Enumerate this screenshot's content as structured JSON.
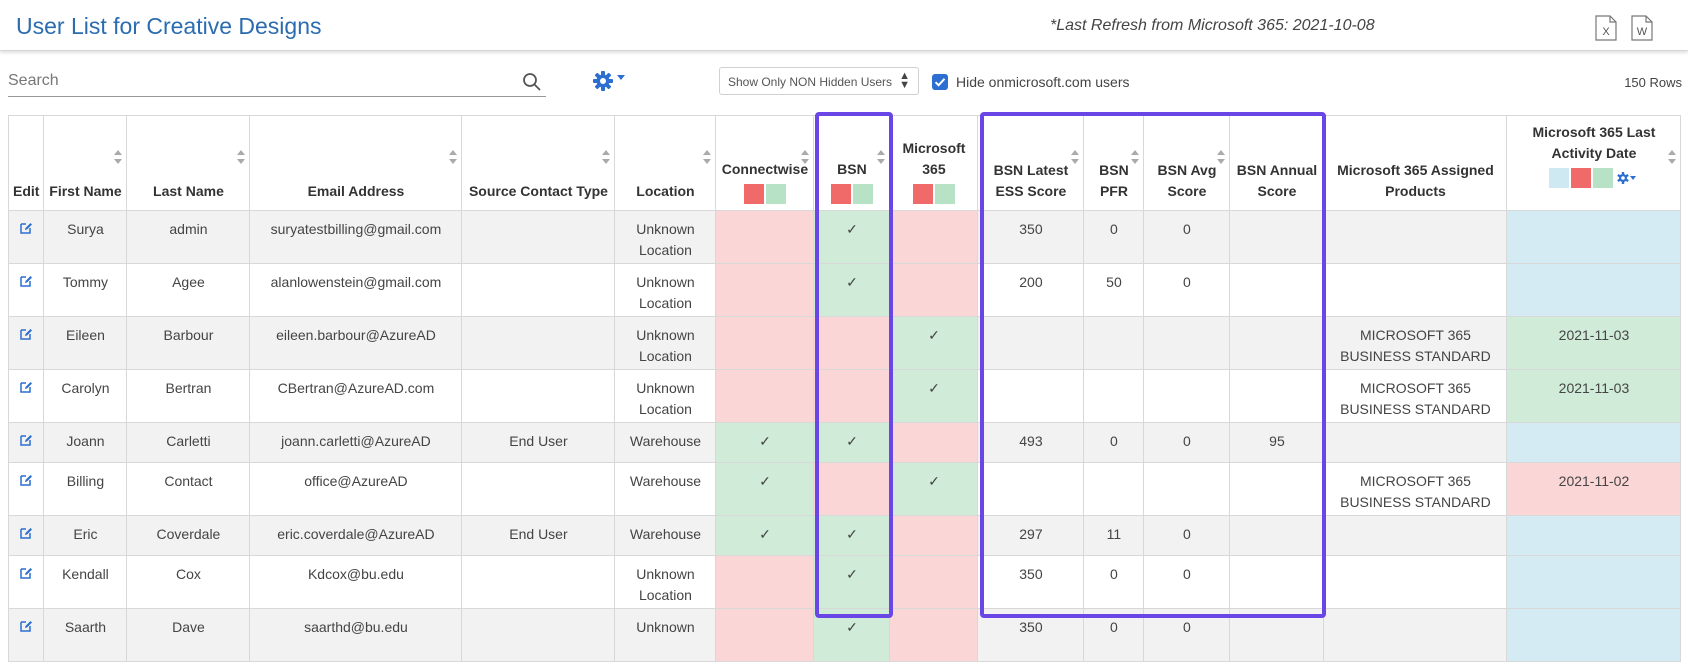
{
  "header": {
    "title": "User List for Creative Designs",
    "refresh_note": "*Last Refresh from Microsoft 365: 2021-10-08",
    "export_excel_letter": "X",
    "export_word_letter": "W"
  },
  "toolbar": {
    "search_placeholder": "Search",
    "filter_value": "Show Only NON Hidden Users",
    "hide_onmicrosoft_label": "Hide onmicrosoft.com users",
    "hide_onmicrosoft_checked": true,
    "row_count": "150 Rows"
  },
  "colors": {
    "accent": "#2b6cb0",
    "highlight_border": "#6a46e6",
    "status_red": "#fbd6d6",
    "status_green": "#d0ecd8",
    "status_blue": "#d4ebf4"
  },
  "columns": [
    {
      "key": "edit",
      "label": "Edit"
    },
    {
      "key": "first",
      "label": "First Name"
    },
    {
      "key": "last",
      "label": "Last Name"
    },
    {
      "key": "email",
      "label": "Email Address"
    },
    {
      "key": "source",
      "label": "Source Contact Type"
    },
    {
      "key": "location",
      "label": "Location"
    },
    {
      "key": "connectwise",
      "label": "Connectwise"
    },
    {
      "key": "bsn",
      "label": "BSN"
    },
    {
      "key": "m365",
      "label": "Microsoft 365"
    },
    {
      "key": "ess",
      "label": "BSN Latest ESS Score"
    },
    {
      "key": "pfr",
      "label": "BSN PFR"
    },
    {
      "key": "avg",
      "label": "BSN Avg Score"
    },
    {
      "key": "annual",
      "label": "BSN Annual Score"
    },
    {
      "key": "products",
      "label": "Microsoft 365 Assigned Products"
    },
    {
      "key": "activity",
      "label": "Microsoft 365 Last Activity Date"
    }
  ],
  "rows": [
    {
      "first": "Surya",
      "last": "admin",
      "email": "suryatestbilling@gmail.com",
      "source": "",
      "location": "Unknown Location",
      "connectwise": "",
      "bsn": "✓",
      "m365": "",
      "ess": "350",
      "pfr": "0",
      "avg": "0",
      "annual": "",
      "products": "",
      "activity": ""
    },
    {
      "first": "Tommy",
      "last": "Agee",
      "email": "alanlowenstein@gmail.com",
      "source": "",
      "location": "Unknown Location",
      "connectwise": "",
      "bsn": "✓",
      "m365": "",
      "ess": "200",
      "pfr": "50",
      "avg": "0",
      "annual": "",
      "products": "",
      "activity": ""
    },
    {
      "first": "Eileen",
      "last": "Barbour",
      "email": "eileen.barbour@AzureAD",
      "source": "",
      "location": "Unknown Location",
      "connectwise": "",
      "bsn": "",
      "m365": "✓",
      "ess": "",
      "pfr": "",
      "avg": "",
      "annual": "",
      "products": "MICROSOFT 365 BUSINESS STANDARD",
      "activity": "2021-11-03"
    },
    {
      "first": "Carolyn",
      "last": "Bertran",
      "email": "CBertran@AzureAD.com",
      "source": "",
      "location": "Unknown Location",
      "connectwise": "",
      "bsn": "",
      "m365": "✓",
      "ess": "",
      "pfr": "",
      "avg": "",
      "annual": "",
      "products": "MICROSOFT 365 BUSINESS STANDARD",
      "activity": "2021-11-03"
    },
    {
      "first": "Joann",
      "last": "Carletti",
      "email": "joann.carletti@AzureAD",
      "source": "End User",
      "location": "Warehouse",
      "connectwise": "✓",
      "bsn": "✓",
      "m365": "",
      "ess": "493",
      "pfr": "0",
      "avg": "0",
      "annual": "95",
      "products": "",
      "activity": ""
    },
    {
      "first": "Billing",
      "last": "Contact",
      "email": "office@AzureAD",
      "source": "",
      "location": "Warehouse",
      "connectwise": "✓",
      "bsn": "",
      "m365": "✓",
      "ess": "",
      "pfr": "",
      "avg": "",
      "annual": "",
      "products": "MICROSOFT 365 BUSINESS STANDARD",
      "activity": "2021-11-02"
    },
    {
      "first": "Eric",
      "last": "Coverdale",
      "email": "eric.coverdale@AzureAD",
      "source": "End User",
      "location": "Warehouse",
      "connectwise": "✓",
      "bsn": "✓",
      "m365": "",
      "ess": "297",
      "pfr": "11",
      "avg": "0",
      "annual": "",
      "products": "",
      "activity": ""
    },
    {
      "first": "Kendall",
      "last": "Cox",
      "email": "Kdcox@bu.edu",
      "source": "",
      "location": "Unknown Location",
      "connectwise": "",
      "bsn": "✓",
      "m365": "",
      "ess": "350",
      "pfr": "0",
      "avg": "0",
      "annual": "",
      "products": "",
      "activity": ""
    },
    {
      "first": "Saarth",
      "last": "Dave",
      "email": "saarthd@bu.edu",
      "source": "",
      "location": "Unknown",
      "connectwise": "",
      "bsn": "✓",
      "m365": "",
      "ess": "350",
      "pfr": "0",
      "avg": "0",
      "annual": "",
      "products": "",
      "activity": ""
    }
  ]
}
